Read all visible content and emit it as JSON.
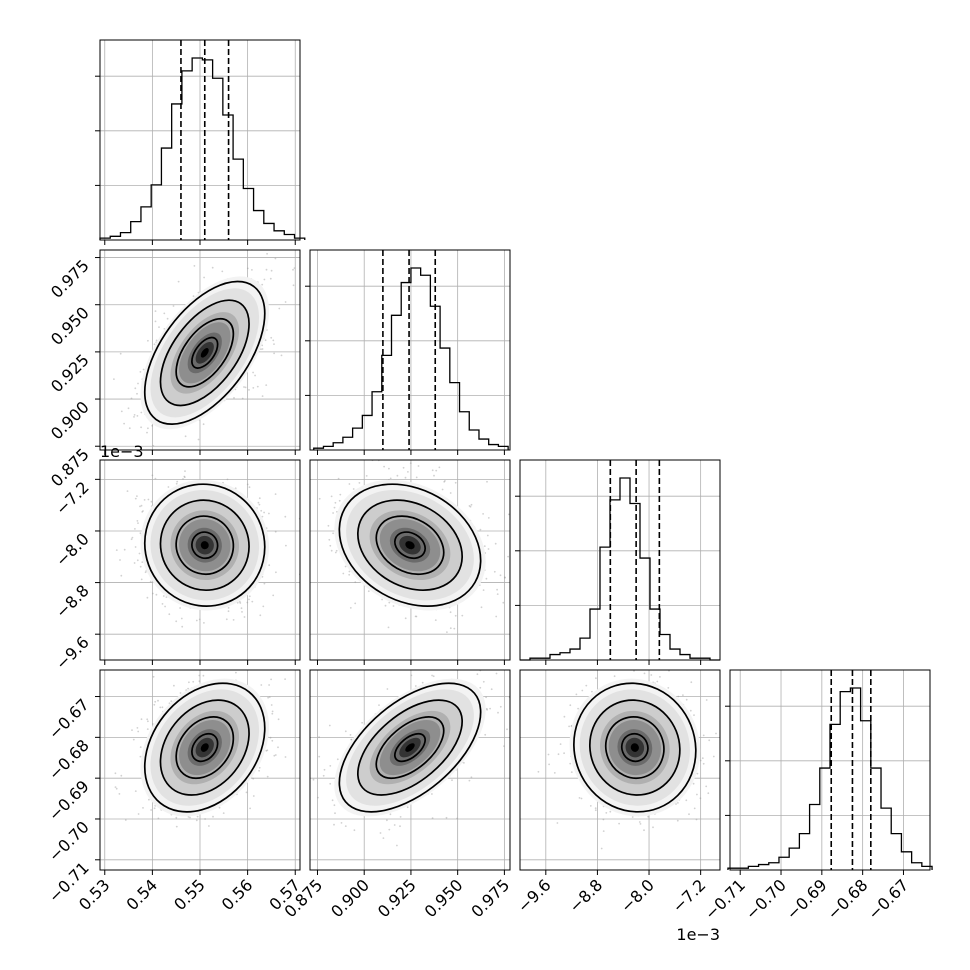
{
  "chart_data": {
    "type": "corner",
    "parameters": 4,
    "colors": {
      "frame": "#000000",
      "grid": "#b0b0b0",
      "scatter": "#9a9a9a"
    },
    "x_ticks": [
      {
        "ticks": [
          0.53,
          0.54,
          0.55,
          0.56,
          0.57
        ],
        "labels": [
          "0.53",
          "0.54",
          "0.55",
          "0.56",
          "0.57"
        ]
      },
      {
        "ticks": [
          0.875,
          0.9,
          0.925,
          0.95,
          0.975
        ],
        "labels": [
          "0.875",
          "0.900",
          "0.925",
          "0.950",
          "0.975"
        ]
      },
      {
        "ticks": [
          -9.6,
          -8.8,
          -8.0,
          -7.2
        ],
        "labels": [
          "−9.6",
          "−8.8",
          "−8.0",
          "−7.2"
        ],
        "offset": "1e−3"
      },
      {
        "ticks": [
          -0.71,
          -0.7,
          -0.69,
          -0.68,
          -0.67
        ],
        "labels": [
          "−0.71",
          "−0.70",
          "−0.69",
          "−0.68",
          "−0.67"
        ]
      }
    ],
    "y_ticks": [
      null,
      {
        "ticks": [
          0.875,
          0.9,
          0.925,
          0.95,
          0.975
        ],
        "labels": [
          "0.875",
          "0.900",
          "0.925",
          "0.950",
          "0.975"
        ]
      },
      {
        "ticks": [
          -9.6,
          -8.8,
          -8.0,
          -7.2
        ],
        "labels": [
          "−9.6",
          "−8.8",
          "−8.0",
          "−7.2"
        ],
        "offset": "1e−3"
      },
      {
        "ticks": [
          -0.71,
          -0.7,
          -0.69,
          -0.68,
          -0.67
        ],
        "labels": [
          "−0.71",
          "−0.70",
          "−0.69",
          "−0.68",
          "−0.67"
        ]
      }
    ],
    "histograms": [
      {
        "range": [
          0.529,
          0.572
        ],
        "counts": [
          1,
          2,
          4,
          10,
          18,
          30,
          50,
          74,
          92,
          99,
          98,
          88,
          68,
          44,
          28,
          16,
          9,
          5,
          3,
          1
        ],
        "quantiles": [
          0.546,
          0.551,
          0.556
        ]
      },
      {
        "range": [
          0.873,
          0.977
        ],
        "counts": [
          1,
          2,
          4,
          7,
          12,
          19,
          32,
          52,
          74,
          92,
          100,
          96,
          79,
          56,
          37,
          21,
          11,
          6,
          3,
          2
        ],
        "quantiles": [
          0.91,
          0.924,
          0.938
        ]
      },
      {
        "range": [
          -10.0,
          -6.9
        ],
        "counts": [
          0,
          1,
          1,
          3,
          4,
          6,
          12,
          28,
          62,
          88,
          100,
          86,
          56,
          28,
          14,
          6,
          3,
          1,
          1,
          0
        ],
        "quantiles": [
          -8.6,
          -8.2,
          -7.84
        ]
      },
      {
        "range": [
          -0.713,
          -0.663
        ],
        "counts": [
          1,
          1,
          2,
          3,
          4,
          7,
          12,
          20,
          36,
          56,
          80,
          98,
          100,
          82,
          56,
          34,
          20,
          10,
          4,
          2
        ],
        "quantiles": [
          -0.6877,
          -0.6825,
          -0.678
        ]
      }
    ],
    "pairs": [
      {
        "x": 0,
        "y": 1,
        "mean": [
          0.551,
          0.9245
        ],
        "sd": [
          0.006,
          0.018
        ],
        "rho": 0.55
      },
      {
        "x": 0,
        "y": 2,
        "mean": [
          0.551,
          -8.22
        ],
        "sd": [
          0.006,
          0.45
        ],
        "rho": -0.03
      },
      {
        "x": 1,
        "y": 2,
        "mean": [
          0.9245,
          -8.22
        ],
        "sd": [
          0.018,
          0.45
        ],
        "rho": -0.25
      },
      {
        "x": 0,
        "y": 3,
        "mean": [
          0.551,
          -0.6825
        ],
        "sd": [
          0.006,
          0.0075
        ],
        "rho": 0.3
      },
      {
        "x": 1,
        "y": 3,
        "mean": [
          0.9245,
          -0.6825
        ],
        "sd": [
          0.018,
          0.0075
        ],
        "rho": 0.55
      },
      {
        "x": 2,
        "y": 3,
        "mean": [
          -8.22,
          -0.6825
        ],
        "sd": [
          0.45,
          0.0075
        ],
        "rho": -0.05
      }
    ]
  }
}
